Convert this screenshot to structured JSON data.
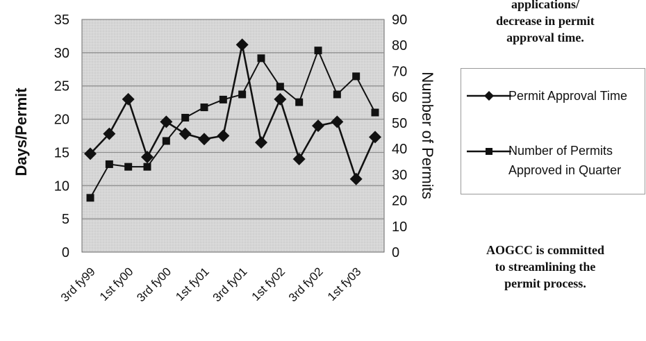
{
  "notes": {
    "top_lines": [
      "applications/",
      "decrease in permit",
      "approval time."
    ],
    "bottom_lines": [
      "AOGCC is committed",
      "to streamlining the",
      "permit process."
    ]
  },
  "legend": {
    "series1_label": "Permit Approval Time",
    "series2_line1": "Number of Permits",
    "series2_line2": "Approved in Quarter"
  },
  "chart_data": {
    "type": "line",
    "ylabel": "Days/Permit",
    "y2label": "Number of Permits",
    "ylim": [
      0,
      35
    ],
    "y2lim": [
      0,
      90
    ],
    "yticks": [
      0,
      5,
      10,
      15,
      20,
      25,
      30,
      35
    ],
    "y2ticks": [
      0,
      10,
      20,
      30,
      40,
      50,
      60,
      70,
      80,
      90
    ],
    "grid": true,
    "legend_position": "right",
    "x_labels": [
      "3rd fy99",
      "1st fy00",
      "3rd fy00",
      "1st fy01",
      "3rd fy01",
      "1st fy02",
      "3rd fy02",
      "1st fy03"
    ],
    "series": [
      {
        "name": "Permit Approval Time",
        "axis": "left",
        "marker": "diamond",
        "values": [
          14.8,
          17.8,
          23.0,
          14.3,
          19.6,
          17.8,
          17.0,
          17.5,
          31.2,
          16.5,
          23.0,
          14.0,
          19.0,
          19.6,
          11.0,
          17.3
        ]
      },
      {
        "name": "Number of Permits Approved in Quarter",
        "axis": "right",
        "marker": "square",
        "values": [
          21,
          34,
          33,
          33,
          43,
          52,
          56,
          59,
          61,
          75,
          64,
          58,
          78,
          61,
          68,
          54
        ]
      }
    ]
  }
}
